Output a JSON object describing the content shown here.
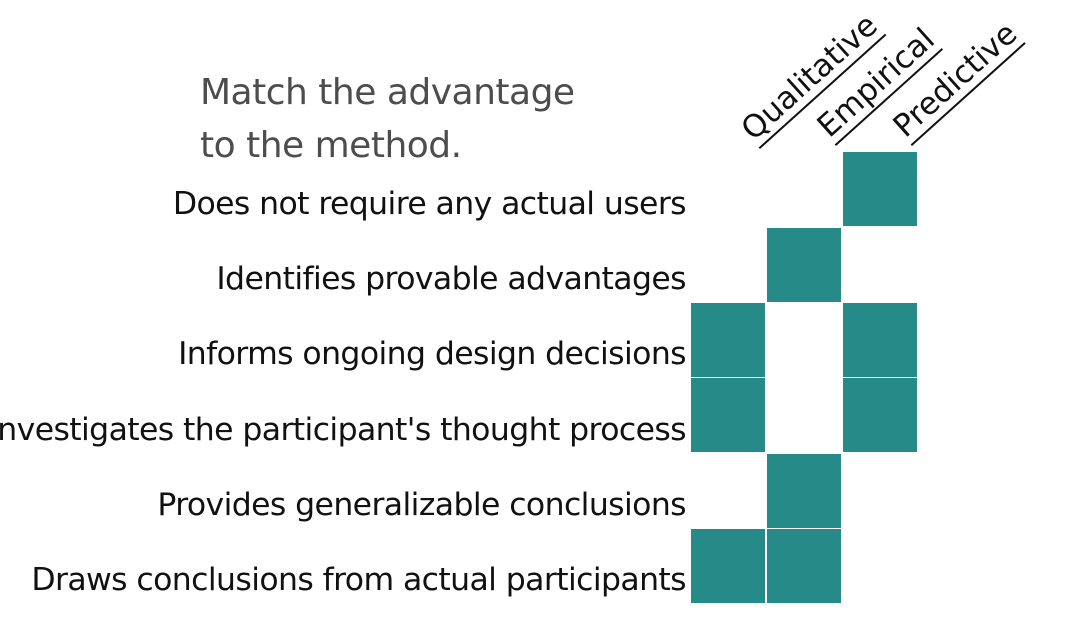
{
  "prompt": {
    "line1": "Match the advantage",
    "line2": "to the method."
  },
  "columns": [
    "Qualitative",
    "Empirical",
    "Predictive"
  ],
  "rows": [
    "Does not require any actual users",
    "Identifies provable advantages",
    "Informs ongoing design decisions",
    "Investigates the participant's thought process",
    "Provides generalizable conclusions",
    "Draws conclusions from actual participants"
  ],
  "matrix": [
    [
      false,
      false,
      true
    ],
    [
      false,
      true,
      false
    ],
    [
      true,
      false,
      true
    ],
    [
      true,
      false,
      true
    ],
    [
      false,
      true,
      false
    ],
    [
      true,
      true,
      false
    ]
  ],
  "colors": {
    "filled_cell": "#268b88",
    "text": "#111111",
    "prompt_text": "#4d4d4d"
  }
}
